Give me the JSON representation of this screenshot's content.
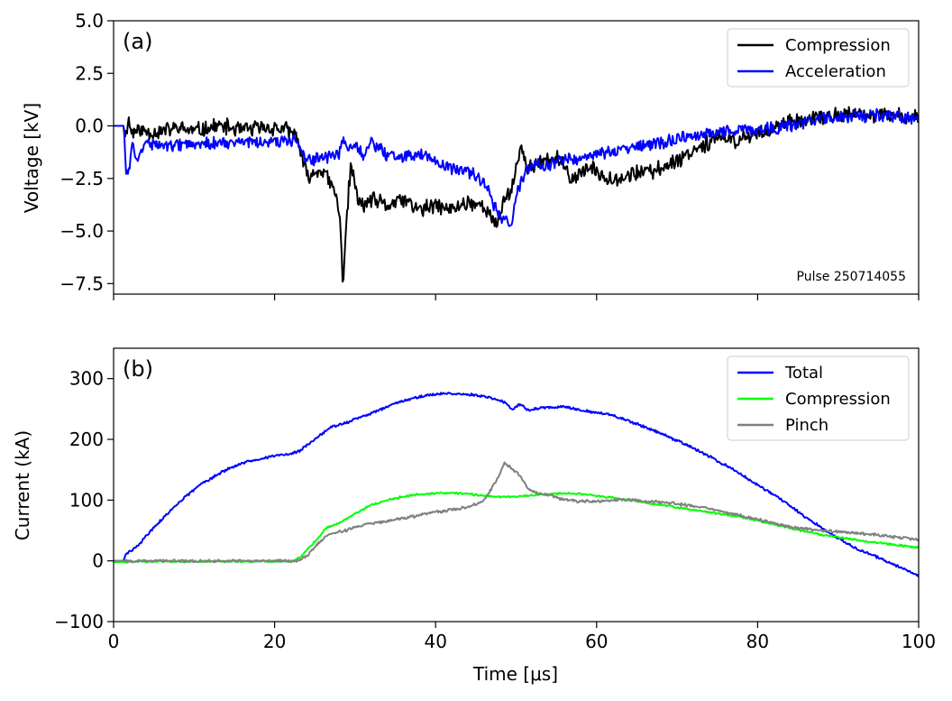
{
  "figure": {
    "xlabel": "Time [μs]",
    "xlim": [
      0,
      100
    ],
    "xticks": [
      0,
      20,
      40,
      60,
      80,
      100
    ]
  },
  "chart_data": [
    {
      "type": "line",
      "panel": "(a)",
      "title": "",
      "xlabel": "",
      "ylabel": "Voltage [kV]",
      "xlim": [
        0,
        100
      ],
      "ylim": [
        -8.0,
        5.0
      ],
      "yticks": [
        5.0,
        2.5,
        0.0,
        -2.5,
        -5.0,
        -7.5
      ],
      "ytick_labels": [
        "5.0",
        "2.5",
        "0.0",
        "−2.5",
        "−5.0",
        "−7.5"
      ],
      "legend_position": "top-right",
      "annotation": "Pulse 250714055",
      "series": [
        {
          "name": "Compression",
          "color": "#000000",
          "noise": 0.45,
          "points": [
            [
              0,
              0
            ],
            [
              1.3,
              0
            ],
            [
              1.5,
              -0.6
            ],
            [
              1.8,
              0.4
            ],
            [
              2.2,
              -0.3
            ],
            [
              3,
              -0.2
            ],
            [
              5,
              -0.3
            ],
            [
              8,
              -0.1
            ],
            [
              10,
              -0.25
            ],
            [
              13,
              0.0
            ],
            [
              16,
              -0.2
            ],
            [
              18,
              -0.1
            ],
            [
              20,
              -0.1
            ],
            [
              21.5,
              -0.2
            ],
            [
              22.8,
              -0.5
            ],
            [
              23.5,
              -1.8
            ],
            [
              24.2,
              -2.5
            ],
            [
              25,
              -2.2
            ],
            [
              26,
              -2.1
            ],
            [
              27,
              -2.8
            ],
            [
              27.8,
              -3.5
            ],
            [
              28.2,
              -5.0
            ],
            [
              28.5,
              -7.7
            ],
            [
              28.9,
              -4.5
            ],
            [
              29.5,
              -1.8
            ],
            [
              30.3,
              -3.5
            ],
            [
              31,
              -3.8
            ],
            [
              32,
              -3.5
            ],
            [
              34,
              -3.8
            ],
            [
              36,
              -3.5
            ],
            [
              38,
              -4.0
            ],
            [
              40,
              -3.8
            ],
            [
              42,
              -4.0
            ],
            [
              44,
              -3.6
            ],
            [
              46,
              -3.8
            ],
            [
              47.5,
              -4.8
            ],
            [
              48.5,
              -3.5
            ],
            [
              49.5,
              -3.0
            ],
            [
              50.5,
              -1.0
            ],
            [
              51.5,
              -2.0
            ],
            [
              53,
              -1.8
            ],
            [
              55,
              -1.5
            ],
            [
              57,
              -2.5
            ],
            [
              59,
              -2.0
            ],
            [
              61,
              -2.4
            ],
            [
              63,
              -2.5
            ],
            [
              65,
              -2.2
            ],
            [
              67,
              -2.2
            ],
            [
              69,
              -1.8
            ],
            [
              71,
              -1.4
            ],
            [
              73,
              -0.9
            ],
            [
              75,
              -0.6
            ],
            [
              77,
              -0.7
            ],
            [
              79,
              -0.5
            ],
            [
              81,
              -0.2
            ],
            [
              83,
              0.0
            ],
            [
              85,
              0.2
            ],
            [
              87,
              0.3
            ],
            [
              89,
              0.45
            ],
            [
              91,
              0.55
            ],
            [
              93,
              0.5
            ],
            [
              95,
              0.5
            ],
            [
              97,
              0.45
            ],
            [
              100,
              0.4
            ]
          ]
        },
        {
          "name": "Acceleration",
          "color": "#0000ff",
          "noise": 0.35,
          "points": [
            [
              0,
              0
            ],
            [
              1.3,
              0
            ],
            [
              1.5,
              -2.0
            ],
            [
              1.8,
              -2.3
            ],
            [
              2.3,
              -1.0
            ],
            [
              3,
              -1.5
            ],
            [
              4,
              -0.8
            ],
            [
              5,
              -0.9
            ],
            [
              8,
              -0.9
            ],
            [
              12,
              -0.85
            ],
            [
              16,
              -0.8
            ],
            [
              20,
              -0.75
            ],
            [
              22.8,
              -0.7
            ],
            [
              23.5,
              -1.4
            ],
            [
              25,
              -1.6
            ],
            [
              27,
              -1.5
            ],
            [
              28,
              -1.4
            ],
            [
              28.5,
              -0.5
            ],
            [
              29,
              -1.2
            ],
            [
              30,
              -0.8
            ],
            [
              31,
              -1.5
            ],
            [
              32,
              -0.8
            ],
            [
              34,
              -1.4
            ],
            [
              36,
              -1.5
            ],
            [
              38,
              -1.3
            ],
            [
              40,
              -1.7
            ],
            [
              42,
              -2.0
            ],
            [
              44,
              -2.2
            ],
            [
              46,
              -2.6
            ],
            [
              47.5,
              -4.0
            ],
            [
              48.5,
              -4.4
            ],
            [
              49.5,
              -4.6
            ],
            [
              50,
              -3.3
            ],
            [
              51,
              -2.3
            ],
            [
              52,
              -1.8
            ],
            [
              54,
              -1.9
            ],
            [
              56,
              -1.6
            ],
            [
              58,
              -1.5
            ],
            [
              60,
              -1.4
            ],
            [
              62,
              -1.2
            ],
            [
              64,
              -1.1
            ],
            [
              66,
              -0.9
            ],
            [
              68,
              -0.8
            ],
            [
              70,
              -0.6
            ],
            [
              72,
              -0.5
            ],
            [
              74,
              -0.3
            ],
            [
              76,
              -0.3
            ],
            [
              78,
              -0.2
            ],
            [
              80,
              -0.15
            ],
            [
              82,
              -0.1
            ],
            [
              84,
              0.0
            ],
            [
              86,
              0.2
            ],
            [
              88,
              0.35
            ],
            [
              90,
              0.4
            ],
            [
              92,
              0.45
            ],
            [
              94,
              0.5
            ],
            [
              96,
              0.45
            ],
            [
              100,
              0.4
            ]
          ]
        }
      ]
    },
    {
      "type": "line",
      "panel": "(b)",
      "title": "",
      "xlabel": "Time [μs]",
      "ylabel": "Current (kA)",
      "xlim": [
        0,
        100
      ],
      "ylim": [
        -100,
        350
      ],
      "yticks": [
        300,
        200,
        100,
        0,
        -100
      ],
      "ytick_labels": [
        "300",
        "200",
        "100",
        "0",
        "−100"
      ],
      "legend_position": "top-right",
      "series": [
        {
          "name": "Total",
          "color": "#0000ff",
          "noise": 2.5,
          "points": [
            [
              0,
              0
            ],
            [
              1.2,
              0
            ],
            [
              1.5,
              10
            ],
            [
              3,
              25
            ],
            [
              5,
              55
            ],
            [
              8,
              95
            ],
            [
              11,
              128
            ],
            [
              14,
              150
            ],
            [
              17,
              165
            ],
            [
              20,
              173
            ],
            [
              22,
              176
            ],
            [
              23,
              180
            ],
            [
              25,
              200
            ],
            [
              27,
              220
            ],
            [
              29,
              228
            ],
            [
              31,
              238
            ],
            [
              33,
              248
            ],
            [
              35,
              260
            ],
            [
              38,
              270
            ],
            [
              41,
              276
            ],
            [
              44,
              274
            ],
            [
              47,
              268
            ],
            [
              48.5,
              262
            ],
            [
              49.5,
              250
            ],
            [
              50.5,
              258
            ],
            [
              51.5,
              248
            ],
            [
              53,
              252
            ],
            [
              56,
              254
            ],
            [
              59,
              246
            ],
            [
              62,
              240
            ],
            [
              65,
              225
            ],
            [
              68,
              210
            ],
            [
              71,
              192
            ],
            [
              74,
              172
            ],
            [
              77,
              150
            ],
            [
              80,
              125
            ],
            [
              83,
              100
            ],
            [
              86,
              72
            ],
            [
              89,
              45
            ],
            [
              92,
              22
            ],
            [
              95,
              5
            ],
            [
              98,
              -12
            ],
            [
              100,
              -25
            ]
          ]
        },
        {
          "name": "Compression",
          "color": "#00ff00",
          "noise": 1.8,
          "points": [
            [
              0,
              -2
            ],
            [
              5,
              -1
            ],
            [
              10,
              -1
            ],
            [
              15,
              -1
            ],
            [
              20,
              -1
            ],
            [
              22.5,
              0
            ],
            [
              23.5,
              10
            ],
            [
              25,
              32
            ],
            [
              26.5,
              55
            ],
            [
              28,
              62
            ],
            [
              30,
              78
            ],
            [
              32,
              92
            ],
            [
              34,
              100
            ],
            [
              36,
              106
            ],
            [
              38,
              110
            ],
            [
              40,
              111
            ],
            [
              42,
              112
            ],
            [
              44,
              110
            ],
            [
              46,
              107
            ],
            [
              48,
              105
            ],
            [
              50,
              106
            ],
            [
              52,
              108
            ],
            [
              54,
              110
            ],
            [
              56,
              111
            ],
            [
              58,
              110
            ],
            [
              60,
              107
            ],
            [
              62,
              104
            ],
            [
              64,
              100
            ],
            [
              66,
              96
            ],
            [
              68,
              92
            ],
            [
              70,
              88
            ],
            [
              72,
              84
            ],
            [
              74,
              80
            ],
            [
              76,
              76
            ],
            [
              78,
              72
            ],
            [
              80,
              66
            ],
            [
              82,
              60
            ],
            [
              84,
              54
            ],
            [
              86,
              48
            ],
            [
              88,
              43
            ],
            [
              90,
              39
            ],
            [
              92,
              35
            ],
            [
              94,
              31
            ],
            [
              96,
              28
            ],
            [
              98,
              25
            ],
            [
              100,
              22
            ]
          ]
        },
        {
          "name": "Pinch",
          "color": "#808080",
          "noise": 2.8,
          "points": [
            [
              0,
              0
            ],
            [
              5,
              0
            ],
            [
              10,
              0
            ],
            [
              15,
              0
            ],
            [
              20,
              0
            ],
            [
              22.8,
              0
            ],
            [
              24,
              8
            ],
            [
              25.5,
              30
            ],
            [
              27,
              45
            ],
            [
              29,
              50
            ],
            [
              30,
              56
            ],
            [
              32,
              62
            ],
            [
              34,
              65
            ],
            [
              36,
              70
            ],
            [
              38,
              75
            ],
            [
              40,
              80
            ],
            [
              42,
              84
            ],
            [
              44,
              88
            ],
            [
              46,
              100
            ],
            [
              47.5,
              130
            ],
            [
              48.5,
              160
            ],
            [
              49.5,
              152
            ],
            [
              50.5,
              140
            ],
            [
              51.5,
              118
            ],
            [
              52.5,
              112
            ],
            [
              54,
              108
            ],
            [
              56,
              100
            ],
            [
              58,
              98
            ],
            [
              60,
              98
            ],
            [
              62,
              100
            ],
            [
              64,
              101
            ],
            [
              66,
              98
            ],
            [
              68,
              97
            ],
            [
              70,
              94
            ],
            [
              72,
              90
            ],
            [
              74,
              86
            ],
            [
              76,
              80
            ],
            [
              78,
              74
            ],
            [
              80,
              68
            ],
            [
              82,
              62
            ],
            [
              84,
              56
            ],
            [
              86,
              53
            ],
            [
              88,
              50
            ],
            [
              90,
              48
            ],
            [
              92,
              46
            ],
            [
              94,
              44
            ],
            [
              96,
              41
            ],
            [
              98,
              38
            ],
            [
              100,
              35
            ]
          ]
        }
      ]
    }
  ]
}
